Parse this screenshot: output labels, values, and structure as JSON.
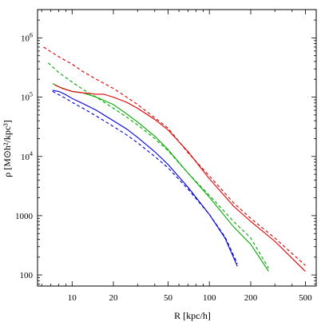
{
  "chart_data": {
    "type": "line",
    "xscale": "log",
    "yscale": "log",
    "xlim": [
      5.6,
      600
    ],
    "ylim": [
      65,
      3000000
    ],
    "xlabel": "R [kpc/h]",
    "ylabel": "ρ [M⊙h²/kpc³]",
    "xticks": [
      {
        "value": 10,
        "label": "10"
      },
      {
        "value": 20,
        "label": "20"
      },
      {
        "value": 50,
        "label": "50"
      },
      {
        "value": 100,
        "label": "100"
      },
      {
        "value": 200,
        "label": "200"
      },
      {
        "value": 500,
        "label": "500"
      }
    ],
    "yticks": [
      {
        "value": 100,
        "label": "100"
      },
      {
        "value": 1000,
        "label": "1000"
      },
      {
        "value": 10000,
        "label": "10^4"
      },
      {
        "value": 100000,
        "label": "10^5"
      },
      {
        "value": 1000000,
        "label": "10^6"
      }
    ],
    "grid": false,
    "legend": "none",
    "series": [
      {
        "color": "#0000dd",
        "style": "solid",
        "x": [
          7.2,
          8,
          9,
          10,
          12,
          15,
          20,
          25,
          30,
          40,
          50,
          70,
          100,
          130,
          160
        ],
        "y": [
          130000,
          125000,
          110000,
          95000,
          78000,
          60000,
          40000,
          29000,
          21000,
          12000,
          7300,
          3000,
          1050,
          420,
          140
        ]
      },
      {
        "color": "#0000dd",
        "style": "dashed",
        "x": [
          7.2,
          8,
          9,
          10,
          12,
          15,
          20,
          25,
          30,
          40,
          50,
          70,
          100,
          130,
          160
        ],
        "y": [
          125000,
          110000,
          95000,
          82000,
          65000,
          48000,
          32000,
          23000,
          17000,
          10000,
          6400,
          2800,
          1050,
          440,
          155
        ]
      },
      {
        "color": "#00aa00",
        "style": "solid",
        "x": [
          7.2,
          8,
          9,
          10,
          12,
          15,
          20,
          25,
          30,
          40,
          50,
          70,
          100,
          150,
          200,
          270
        ],
        "y": [
          170000,
          150000,
          135000,
          125000,
          118000,
          100000,
          75000,
          52000,
          38000,
          22000,
          13000,
          5200,
          2050,
          650,
          330,
          115
        ]
      },
      {
        "color": "#00aa00",
        "style": "dashed",
        "x": [
          6.7,
          8,
          10,
          12,
          15,
          20,
          25,
          30,
          40,
          50,
          70,
          100,
          150,
          200,
          270
        ],
        "y": [
          380000,
          260000,
          180000,
          135000,
          100000,
          65000,
          46000,
          34000,
          20000,
          12500,
          5200,
          2200,
          800,
          420,
          130
        ]
      },
      {
        "color": "#dd0000",
        "style": "solid",
        "x": [
          7.5,
          8.5,
          10,
          12,
          15,
          17,
          20,
          25,
          30,
          40,
          50,
          70,
          100,
          150,
          200,
          300,
          500
        ],
        "y": [
          160000,
          140000,
          125000,
          118000,
          112000,
          112000,
          100000,
          82000,
          65000,
          42000,
          28000,
          12000,
          4200,
          1450,
          800,
          370,
          115
        ]
      },
      {
        "color": "#dd0000",
        "style": "dashed",
        "x": [
          6.2,
          8,
          10,
          12,
          15,
          20,
          25,
          30,
          40,
          50,
          70,
          100,
          150,
          200,
          300,
          500
        ],
        "y": [
          700000,
          480000,
          360000,
          270000,
          200000,
          140000,
          100000,
          75000,
          45000,
          30000,
          11500,
          4700,
          1650,
          900,
          420,
          145
        ]
      }
    ]
  }
}
